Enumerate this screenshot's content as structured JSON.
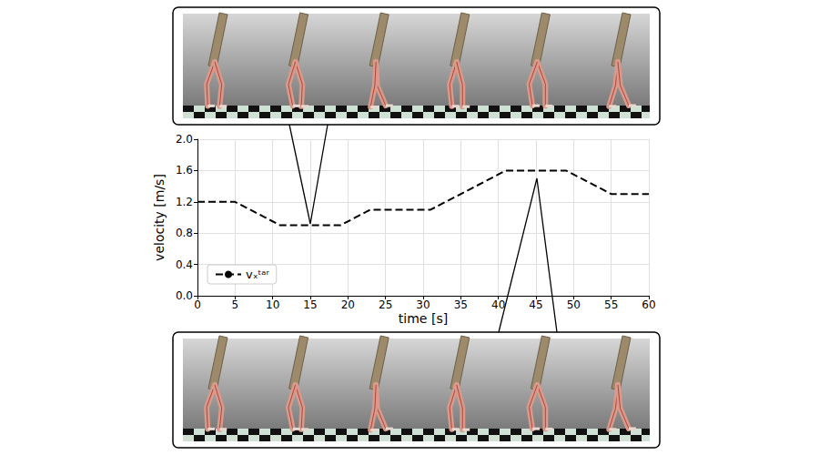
{
  "chart_data": {
    "type": "line",
    "x_label": "time [s]",
    "y_label": "velocity [m/s]",
    "series": [
      {
        "name": "vₓᵗᵃʳ",
        "color": "#000000",
        "line_style": "dashed",
        "x": [
          0,
          5,
          11,
          19,
          23,
          31,
          41,
          49,
          55,
          60
        ],
        "values": [
          1.2,
          1.2,
          0.9,
          0.9,
          1.1,
          1.1,
          1.6,
          1.6,
          1.3,
          1.3
        ]
      }
    ],
    "xlim": [
      0,
      60
    ],
    "xticks": [
      0,
      5,
      10,
      15,
      20,
      25,
      30,
      35,
      40,
      45,
      50,
      55,
      60
    ],
    "ylim": [
      0,
      2
    ],
    "yticks": [
      {
        "value": 0,
        "label": "0.0"
      },
      0.4,
      0.8,
      1.2,
      1.6,
      {
        "value": 2,
        "label": "2.0"
      }
    ],
    "grid": true,
    "legend": "lower left"
  }
}
